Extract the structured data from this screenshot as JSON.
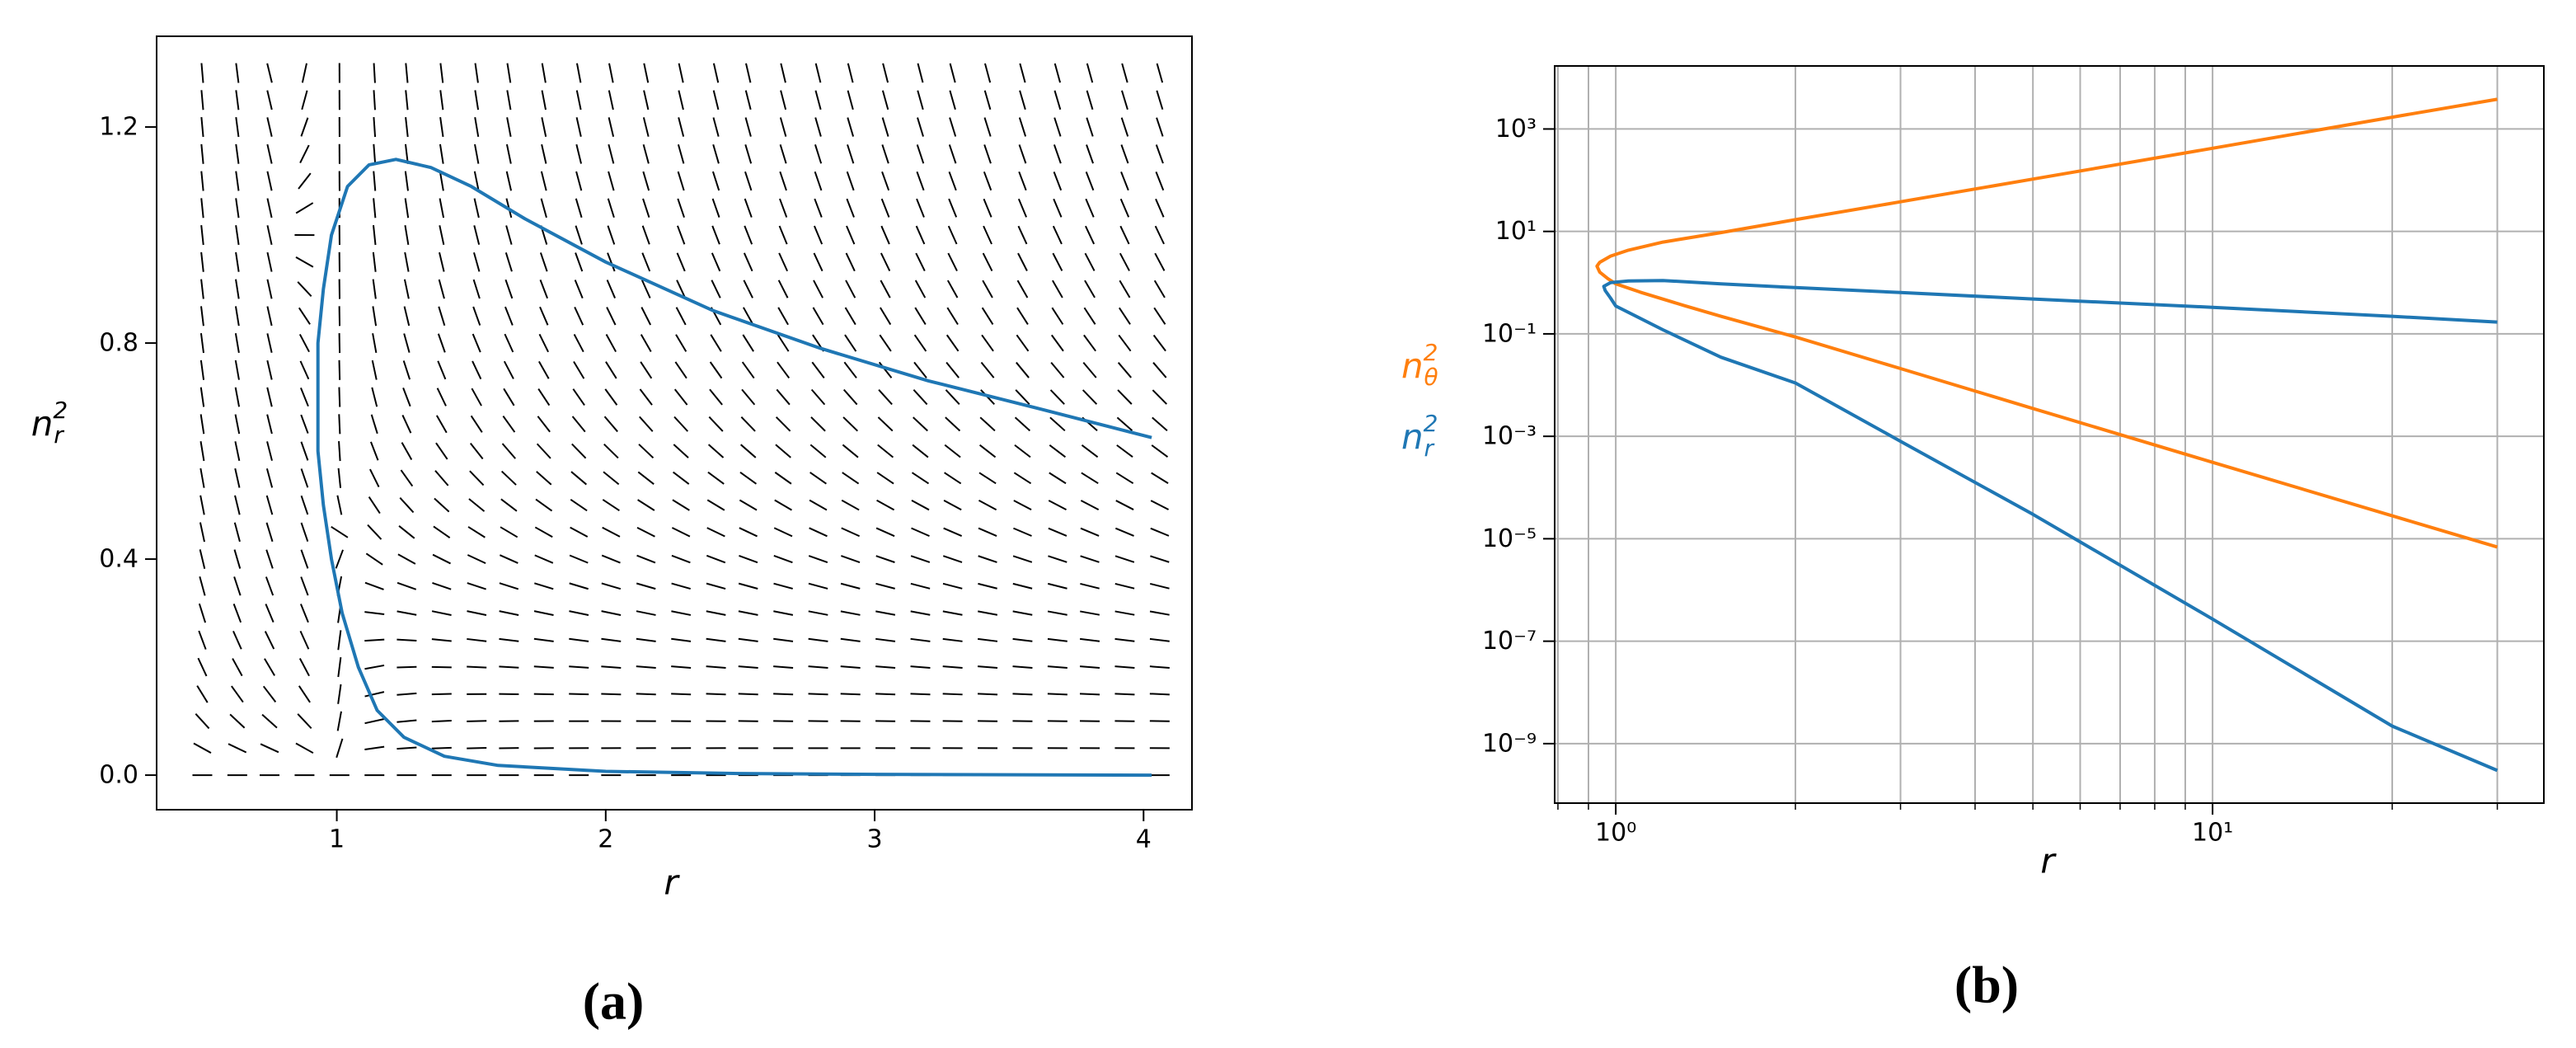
{
  "chart_data": [
    {
      "type": "line",
      "panel": "(a)",
      "xlabel": "r",
      "ylabel": {
        "symbol": "n",
        "subscript": "r",
        "superscript": "2"
      },
      "xlim": [
        0.33,
        4.18
      ],
      "ylim": [
        -0.064,
        1.368
      ],
      "xticks": [
        1,
        2,
        3,
        4
      ],
      "yticks": [
        {
          "value": 0,
          "label": "0.0"
        },
        0.4,
        0.8,
        1.2
      ],
      "color": "#1f77b4",
      "x": [
        4.03,
        3.6,
        3.2,
        2.8,
        2.4,
        2.0,
        1.7,
        1.5,
        1.35,
        1.22,
        1.12,
        1.04,
        0.98,
        0.95,
        0.93,
        0.93,
        0.93,
        0.95,
        0.98,
        1.02,
        1.08,
        1.15,
        1.25,
        1.4,
        1.6,
        2.0,
        2.5,
        3.0,
        4.03
      ],
      "values": [
        0.625,
        0.68,
        0.73,
        0.79,
        0.86,
        0.95,
        1.03,
        1.09,
        1.125,
        1.14,
        1.13,
        1.09,
        1.0,
        0.9,
        0.8,
        0.7,
        0.6,
        0.5,
        0.4,
        0.3,
        0.2,
        0.12,
        0.07,
        0.035,
        0.018,
        0.007,
        0.003,
        0.0015,
        0.0
      ],
      "field_r": [
        0.5,
        0.63,
        0.75,
        0.88,
        1.01,
        1.14,
        1.26,
        1.39,
        1.52,
        1.64,
        1.77,
        1.9,
        2.02,
        2.15,
        2.28,
        2.41,
        2.53,
        2.66,
        2.79,
        2.91,
        3.04,
        3.17,
        3.29,
        3.42,
        3.55,
        3.68,
        3.8,
        3.93,
        4.06
      ],
      "field_n": [
        0,
        0.05,
        0.1,
        0.15,
        0.2,
        0.25,
        0.3,
        0.35,
        0.4,
        0.45,
        0.5,
        0.55,
        0.6,
        0.65,
        0.7,
        0.75,
        0.8,
        0.85,
        0.9,
        0.95,
        1.0,
        1.05,
        1.1,
        1.15,
        1.2,
        1.25,
        1.3
      ]
    },
    {
      "type": "line",
      "panel": "(b)",
      "log_x": true,
      "log_y": true,
      "grid": true,
      "legend": "left",
      "xlabel": "r",
      "xlim": [
        0.79,
        35.9
      ],
      "ylim": [
        6.9e-11,
        17000
      ],
      "xticks": [
        {
          "value": 1,
          "label": "10⁰"
        },
        {
          "value": 10,
          "label": "10¹"
        }
      ],
      "xticks_minor": [
        0.8,
        0.9,
        2,
        3,
        4,
        5,
        6,
        7,
        8,
        9,
        20,
        30
      ],
      "yticks": [
        {
          "value": 1000,
          "label": "10³"
        },
        {
          "value": 10,
          "label": "10¹"
        },
        {
          "value": 0.1,
          "label": "10⁻¹"
        },
        {
          "value": 0.001,
          "label": "10⁻³"
        },
        {
          "value": 1e-05,
          "label": "10⁻⁵"
        },
        {
          "value": 1e-07,
          "label": "10⁻⁷"
        },
        {
          "value": 1e-09,
          "label": "10⁻⁹"
        }
      ],
      "series": [
        {
          "name": {
            "symbol": "n",
            "subscript": "θ",
            "superscript": "2"
          },
          "color": "#ff7f0e",
          "x": [
            30,
            20,
            10,
            5,
            3,
            2,
            1.5,
            1.2,
            1.05,
            0.98,
            0.94,
            0.93,
            0.94,
            0.97,
            1.0,
            1.1,
            1.3,
            1.5,
            2,
            3,
            5,
            10,
            20,
            30
          ],
          "values": [
            3800,
            1700,
            420,
            105,
            38,
            17,
            9.5,
            6.2,
            4.3,
            3.3,
            2.5,
            2.1,
            1.6,
            1.2,
            0.95,
            0.65,
            0.36,
            0.22,
            0.087,
            0.021,
            0.0035,
            0.00031,
            2.8e-05,
            6.9e-06
          ]
        },
        {
          "name": {
            "symbol": "n",
            "subscript": "r",
            "superscript": "2"
          },
          "color": "#1f77b4",
          "x": [
            30,
            20,
            10,
            5,
            3,
            2,
            1.5,
            1.2,
            1.05,
            0.98,
            0.955,
            0.96,
            0.98,
            1.0,
            1.2,
            1.5,
            2,
            3,
            5,
            10,
            20,
            30
          ],
          "values": [
            0.17,
            0.22,
            0.33,
            0.48,
            0.64,
            0.8,
            0.95,
            1.1,
            1.08,
            1.0,
            0.85,
            0.7,
            0.5,
            0.35,
            0.12,
            0.035,
            0.011,
            0.0008,
            3e-05,
            2.7e-07,
            2.2e-09,
            3e-10
          ]
        }
      ]
    }
  ]
}
